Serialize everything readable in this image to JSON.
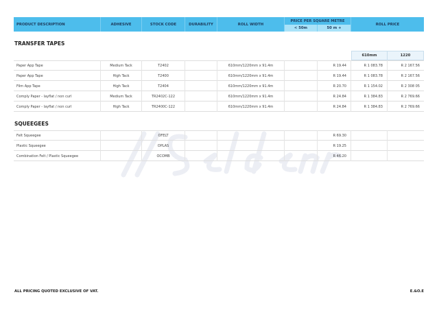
{
  "header": {
    "product": "PRODUCT DESCRIPTION",
    "adhesive": "ADHESIVE",
    "stock": "STOCK CODE",
    "durability": "DURABILITY",
    "roll_width": "ROLL WIDTH",
    "ppsm": "PRICE PER SQUARE METRE",
    "lt50": "< 50m",
    "gt50": "50 m +",
    "roll_price": "ROLL PRICE"
  },
  "watermark": "Seldenrod",
  "transfer": {
    "title": "TRANSFER TAPES",
    "col610": "610mm",
    "col1220": "1220",
    "rows": [
      {
        "desc": "Paper App Tape",
        "adh": "Medium Tack",
        "code": "T2402",
        "dur": "",
        "width": "610mm/1220mm x 91.4m",
        "lt50": "",
        "gt50": "R 19.44",
        "p610": "R 1 083.78",
        "p1220": "R 2 167.56"
      },
      {
        "desc": "Paper App Tape",
        "adh": "High Tack",
        "code": "T2400",
        "dur": "",
        "width": "610mm/1220mm x 91.4m",
        "lt50": "",
        "gt50": "R 19.44",
        "p610": "R 1 083.78",
        "p1220": "R 2 167.56"
      },
      {
        "desc": "Film App Tape",
        "adh": "High Tack",
        "code": "T2404",
        "dur": "",
        "width": "610mm/1220mm x 91.4m",
        "lt50": "",
        "gt50": "R 20.70",
        "p610": "R 1 154.02",
        "p1220": "R 2 308 05"
      },
      {
        "desc": "Comply Paper - layflat / non curl",
        "adh": "Medium Tack",
        "code": "TR2402C-122",
        "dur": "",
        "width": "610mm/1220mm x 91.4m",
        "lt50": "",
        "gt50": "R 24.84",
        "p610": "R 1 384.83",
        "p1220": "R 2 769.66"
      },
      {
        "desc": "Comply Paper - layflat / non curl",
        "adh": "High Tack",
        "code": "TR2400C-122",
        "dur": "",
        "width": "610mm/1220mm x 91.4m",
        "lt50": "",
        "gt50": "R 24.84",
        "p610": "R 1 384.83",
        "p1220": "R 2 769.66"
      }
    ]
  },
  "squeegees": {
    "title": "SQUEEGEES",
    "rows": [
      {
        "desc": "Felt Squeegee",
        "adh": "",
        "code": "OFELT",
        "dur": "",
        "width": "",
        "lt50": "",
        "gt50": "R 69.30",
        "p610": "",
        "p1220": ""
      },
      {
        "desc": "Plastic Squeegee",
        "adh": "",
        "code": "OPLAS",
        "dur": "",
        "width": "",
        "lt50": "",
        "gt50": "R 19.25",
        "p610": "",
        "p1220": ""
      },
      {
        "desc": "Combination Felt / Plastic Squeegee",
        "adh": "",
        "code": "OCOMB",
        "dur": "",
        "width": "",
        "lt50": "",
        "gt50": "R 46.20",
        "p610": "",
        "p1220": ""
      }
    ]
  },
  "footer": {
    "left": "ALL PRICING QUOTED EXCLUSIVE OF VAT.",
    "right": "E.&O.E"
  }
}
